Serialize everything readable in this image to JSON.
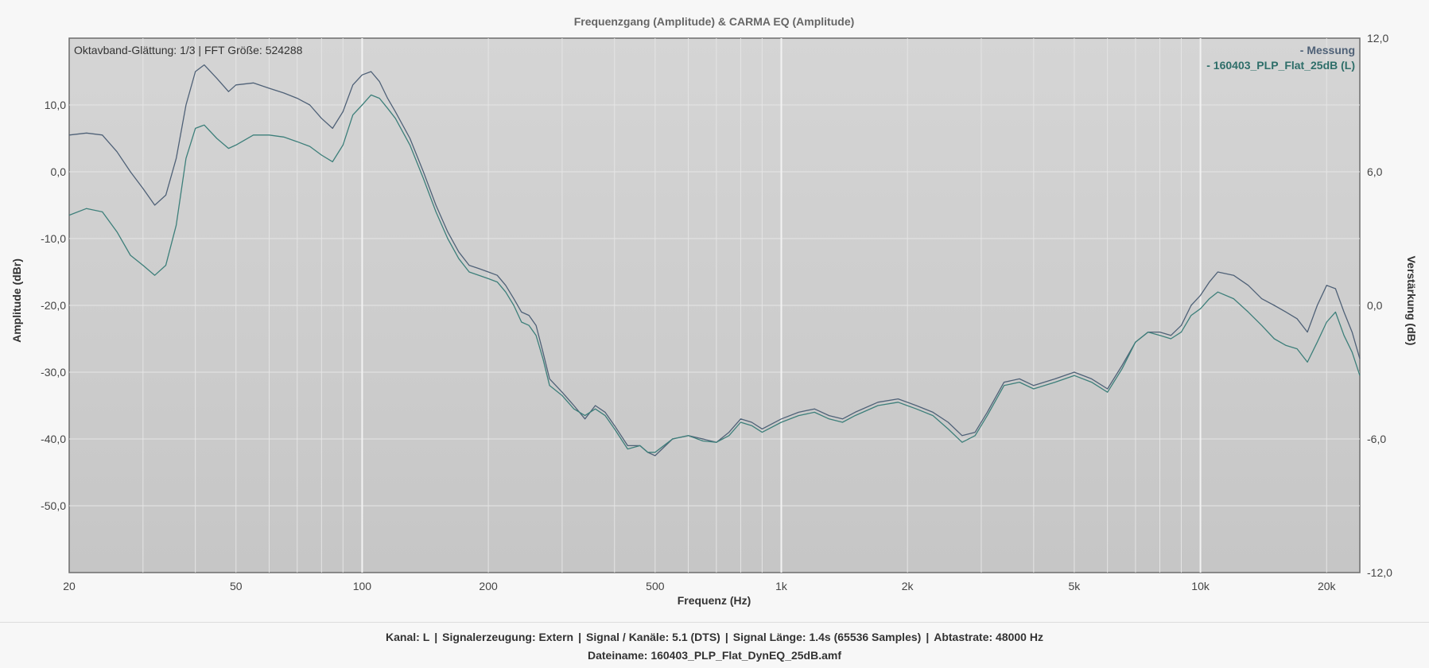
{
  "chart_data": {
    "type": "line",
    "title": "Frequenzgang (Amplitude) & CARMA EQ (Amplitude)",
    "xlabel": "Frequenz (Hz)",
    "ylabel": "Amplitude (dBr)",
    "y2label": "Verstärkung (dB)",
    "xscale": "log",
    "xlim": [
      20,
      24000
    ],
    "ylim": [
      -60,
      20
    ],
    "y2lim": [
      -12,
      12
    ],
    "grid": true,
    "legend_position": "top-right",
    "info_label": "Oktavband-Glättung: 1/3 | FFT Größe: 524288",
    "x_ticks": [
      {
        "value": 20,
        "label": "20"
      },
      {
        "value": 50,
        "label": "50"
      },
      {
        "value": 100,
        "label": "100"
      },
      {
        "value": 200,
        "label": "200"
      },
      {
        "value": 500,
        "label": "500"
      },
      {
        "value": 1000,
        "label": "1k"
      },
      {
        "value": 2000,
        "label": "2k"
      },
      {
        "value": 5000,
        "label": "5k"
      },
      {
        "value": 10000,
        "label": "10k"
      },
      {
        "value": 20000,
        "label": "20k"
      }
    ],
    "y_ticks": [
      {
        "value": 10,
        "label": "10,0"
      },
      {
        "value": 0,
        "label": "0,0"
      },
      {
        "value": -10,
        "label": "-10,0"
      },
      {
        "value": -20,
        "label": "-20,0"
      },
      {
        "value": -30,
        "label": "-30,0"
      },
      {
        "value": -40,
        "label": "-40,0"
      },
      {
        "value": -50,
        "label": "-50,0"
      }
    ],
    "y2_ticks": [
      {
        "value": 12,
        "label": "12,0"
      },
      {
        "value": 6,
        "label": "6,0"
      },
      {
        "value": 0,
        "label": "0,0"
      },
      {
        "value": -6,
        "label": "-6,0"
      },
      {
        "value": -12,
        "label": "-12,0"
      }
    ],
    "series": [
      {
        "name": "- Messung",
        "color": "#4f6177",
        "x": [
          20,
          22,
          24,
          26,
          28,
          30,
          32,
          34,
          36,
          38,
          40,
          42,
          45,
          48,
          50,
          55,
          60,
          65,
          70,
          75,
          80,
          85,
          90,
          95,
          100,
          105,
          110,
          115,
          120,
          130,
          140,
          150,
          160,
          170,
          180,
          190,
          200,
          210,
          220,
          230,
          240,
          250,
          260,
          270,
          280,
          300,
          320,
          340,
          360,
          380,
          400,
          430,
          460,
          480,
          500,
          550,
          600,
          650,
          700,
          750,
          800,
          850,
          900,
          1000,
          1100,
          1200,
          1300,
          1400,
          1500,
          1700,
          1900,
          2100,
          2300,
          2500,
          2700,
          2900,
          3100,
          3400,
          3700,
          4000,
          4500,
          5000,
          5500,
          6000,
          6500,
          7000,
          7500,
          8000,
          8500,
          9000,
          9500,
          10000,
          10500,
          11000,
          12000,
          13000,
          14000,
          15000,
          16000,
          17000,
          18000,
          19000,
          20000,
          21000,
          22000,
          23000,
          24000
        ],
        "y": [
          5.5,
          5.8,
          5.5,
          3.0,
          0.0,
          -2.5,
          -5.0,
          -3.5,
          2.0,
          10.0,
          15.0,
          16.0,
          14.0,
          12.0,
          13.0,
          13.3,
          12.5,
          11.8,
          11.0,
          10.0,
          8.0,
          6.5,
          9.0,
          13.0,
          14.5,
          15.0,
          13.5,
          11.0,
          9.0,
          5.0,
          0.0,
          -5.0,
          -9.0,
          -12.0,
          -14.0,
          -14.5,
          -15.0,
          -15.5,
          -17.0,
          -19.0,
          -21.0,
          -21.5,
          -23.0,
          -27.0,
          -31.0,
          -33.0,
          -35.0,
          -37.0,
          -35.0,
          -36.0,
          -38.0,
          -41.0,
          -41.0,
          -42.0,
          -42.5,
          -40.0,
          -39.5,
          -40.0,
          -40.5,
          -39.0,
          -37.0,
          -37.5,
          -38.5,
          -37.0,
          -36.0,
          -35.5,
          -36.5,
          -37.0,
          -36.0,
          -34.5,
          -34.0,
          -35.0,
          -36.0,
          -37.5,
          -39.5,
          -39.0,
          -36.0,
          -31.5,
          -31.0,
          -32.0,
          -31.0,
          -30.0,
          -31.0,
          -32.5,
          -29.0,
          -25.5,
          -24.0,
          -24.0,
          -24.5,
          -23.0,
          -20.0,
          -18.5,
          -16.5,
          -15.0,
          -15.5,
          -17.0,
          -19.0,
          -20.0,
          -21.0,
          -22.0,
          -24.0,
          -20.0,
          -17.0,
          -17.5,
          -21.0,
          -24.0,
          -28.0
        ]
      },
      {
        "name": "- 160403_PLP_Flat_25dB (L)",
        "color": "#3d7f7a",
        "x": [
          20,
          22,
          24,
          26,
          28,
          30,
          32,
          34,
          36,
          38,
          40,
          42,
          45,
          48,
          50,
          55,
          60,
          65,
          70,
          75,
          80,
          85,
          90,
          95,
          100,
          105,
          110,
          115,
          120,
          130,
          140,
          150,
          160,
          170,
          180,
          190,
          200,
          210,
          220,
          230,
          240,
          250,
          260,
          270,
          280,
          300,
          320,
          340,
          360,
          380,
          400,
          430,
          460,
          480,
          500,
          550,
          600,
          650,
          700,
          750,
          800,
          850,
          900,
          1000,
          1100,
          1200,
          1300,
          1400,
          1500,
          1700,
          1900,
          2100,
          2300,
          2500,
          2700,
          2900,
          3100,
          3400,
          3700,
          4000,
          4500,
          5000,
          5500,
          6000,
          6500,
          7000,
          7500,
          8000,
          8500,
          9000,
          9500,
          10000,
          10500,
          11000,
          12000,
          13000,
          14000,
          15000,
          16000,
          17000,
          18000,
          19000,
          20000,
          21000,
          22000,
          23000,
          24000
        ],
        "y": [
          -6.5,
          -5.5,
          -6.0,
          -9.0,
          -12.5,
          -14.0,
          -15.5,
          -14.0,
          -8.0,
          2.0,
          6.5,
          7.0,
          5.0,
          3.5,
          4.0,
          5.5,
          5.5,
          5.2,
          4.5,
          3.8,
          2.5,
          1.5,
          4.0,
          8.5,
          10.0,
          11.5,
          11.0,
          9.5,
          8.0,
          4.0,
          -1.0,
          -6.0,
          -10.0,
          -13.0,
          -15.0,
          -15.5,
          -16.0,
          -16.5,
          -18.0,
          -20.0,
          -22.5,
          -23.0,
          -24.5,
          -28.0,
          -32.0,
          -33.5,
          -35.5,
          -36.5,
          -35.5,
          -36.5,
          -38.5,
          -41.5,
          -41.0,
          -42.0,
          -42.0,
          -40.0,
          -39.5,
          -40.3,
          -40.5,
          -39.5,
          -37.5,
          -38.0,
          -39.0,
          -37.5,
          -36.5,
          -36.0,
          -37.0,
          -37.5,
          -36.5,
          -35.0,
          -34.5,
          -35.5,
          -36.5,
          -38.5,
          -40.5,
          -39.5,
          -36.5,
          -32.0,
          -31.5,
          -32.5,
          -31.5,
          -30.5,
          -31.5,
          -33.0,
          -29.5,
          -25.5,
          -24.0,
          -24.5,
          -25.0,
          -24.0,
          -21.5,
          -20.5,
          -19.0,
          -18.0,
          -19.0,
          -21.0,
          -23.0,
          -25.0,
          -26.0,
          -26.5,
          -28.5,
          -25.5,
          -22.5,
          -21.0,
          -24.5,
          -27.0,
          -30.5
        ]
      }
    ]
  },
  "footer": {
    "kanal": "Kanal: L",
    "signalerzeugung": "Signalerzeugung: Extern",
    "signal_kanaele": "Signal / Kanäle: 5.1 (DTS)",
    "signal_laenge": "Signal Länge: 1.4s (65536 Samples)",
    "abtastrate": "Abtastrate: 48000 Hz",
    "dateiname": "Dateiname: 160403_PLP_Flat_DynEQ_25dB.amf"
  }
}
